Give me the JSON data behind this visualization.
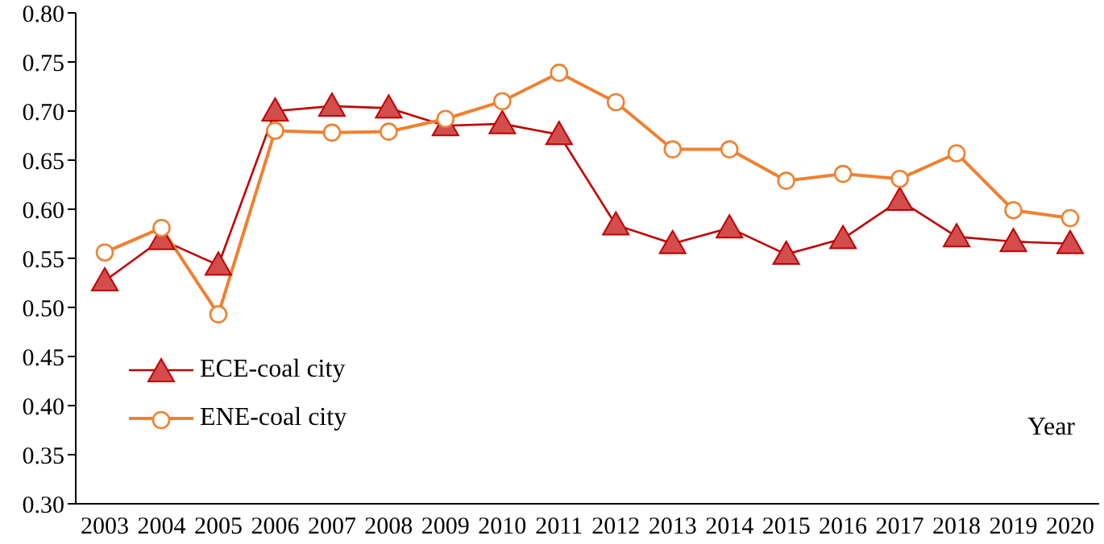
{
  "chart_data": {
    "type": "line",
    "xlabel": "Year",
    "categories": [
      "2003",
      "2004",
      "2005",
      "2006",
      "2007",
      "2008",
      "2009",
      "2010",
      "2011",
      "2012",
      "2013",
      "2014",
      "2015",
      "2016",
      "2017",
      "2018",
      "2019",
      "2020"
    ],
    "series": [
      {
        "name": "ECE-coal city",
        "color": "#c00000",
        "marker": "triangle",
        "values": [
          0.527,
          0.569,
          0.543,
          0.7,
          0.705,
          0.703,
          0.685,
          0.687,
          0.676,
          0.584,
          0.565,
          0.581,
          0.554,
          0.57,
          0.609,
          0.572,
          0.567,
          0.565
        ]
      },
      {
        "name": "ENE-coal city",
        "color": "#f08030",
        "marker": "circle",
        "values": [
          0.556,
          0.581,
          0.493,
          0.68,
          0.678,
          0.679,
          0.692,
          0.71,
          0.739,
          0.709,
          0.661,
          0.661,
          0.629,
          0.636,
          0.631,
          0.657,
          0.599,
          0.591
        ]
      }
    ],
    "ylim": [
      0.3,
      0.8
    ],
    "yticks": [
      {
        "value": 0.3,
        "label": "0.30"
      },
      {
        "value": 0.35,
        "label": "0.35"
      },
      {
        "value": 0.4,
        "label": "0.40"
      },
      {
        "value": 0.45,
        "label": "0.45"
      },
      {
        "value": 0.5,
        "label": "0.50"
      },
      {
        "value": 0.55,
        "label": "0.55"
      },
      {
        "value": 0.6,
        "label": "0.60"
      },
      {
        "value": 0.65,
        "label": "0.65"
      },
      {
        "value": 0.7,
        "label": "0.70"
      },
      {
        "value": 0.75,
        "label": "0.75"
      },
      {
        "value": 0.8,
        "label": "0.80"
      }
    ],
    "grid": false,
    "legend": "left",
    "line_style": "solid"
  }
}
